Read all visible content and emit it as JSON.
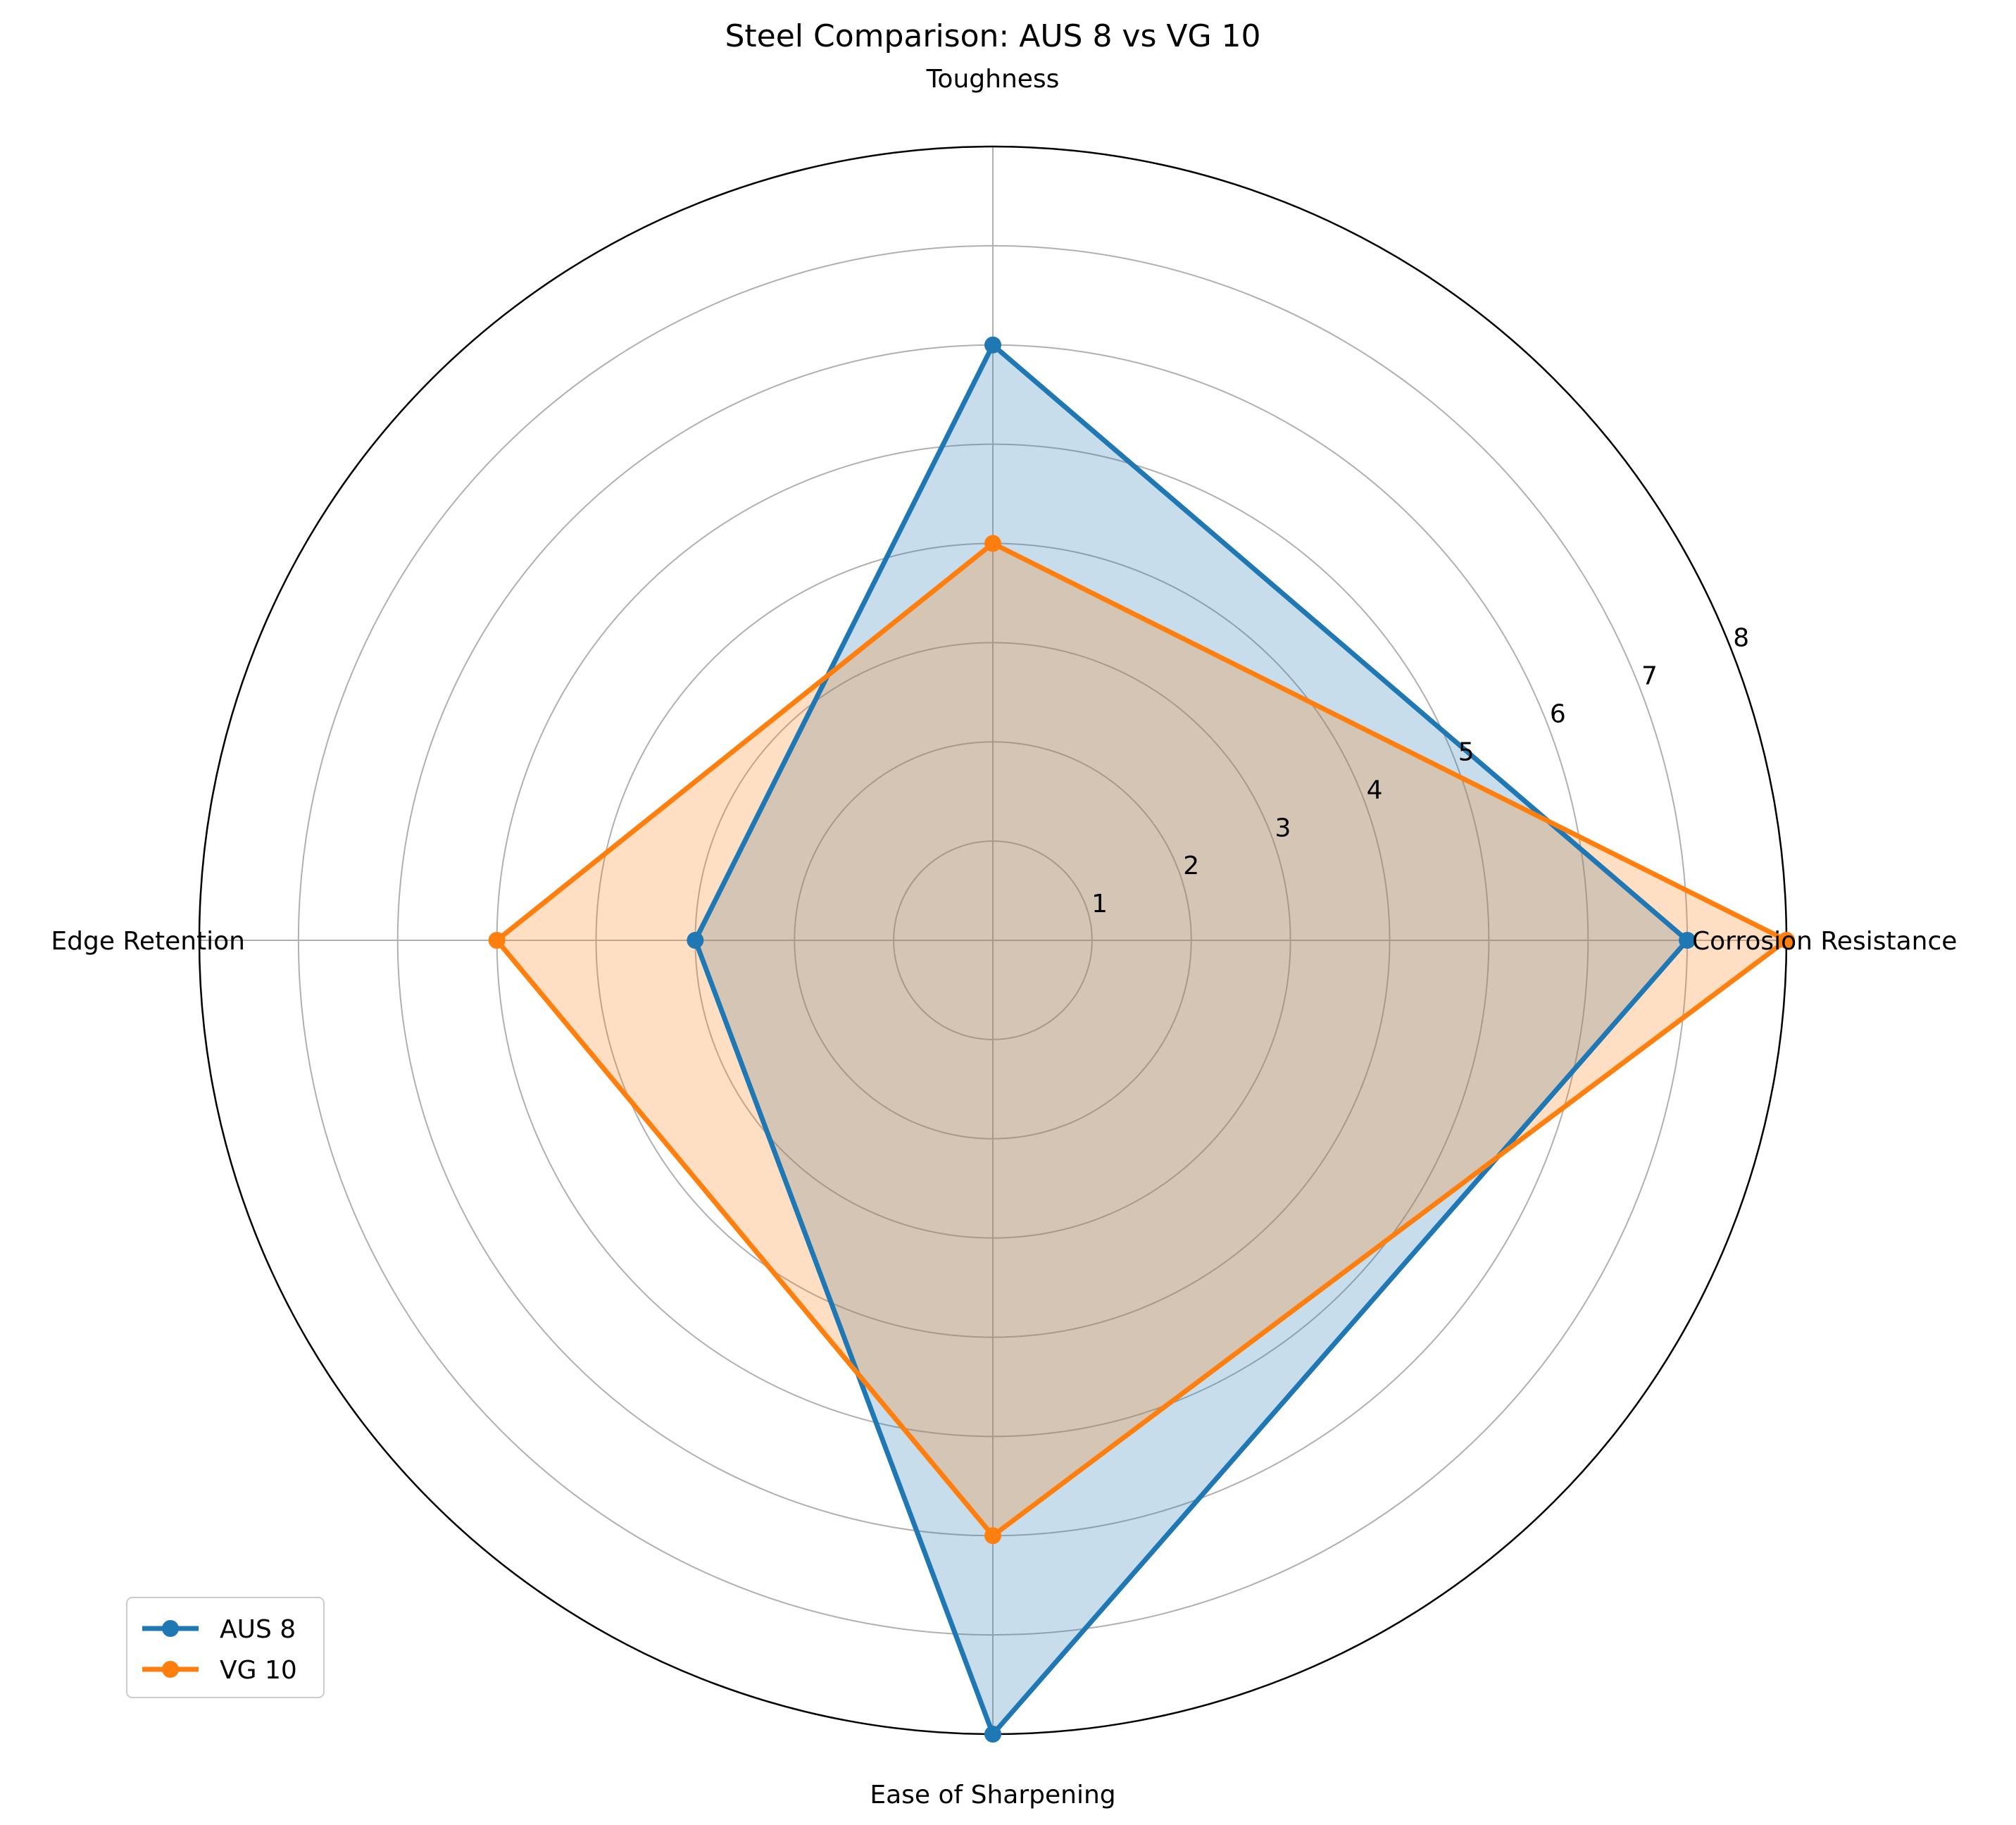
{
  "chart_data": {
    "type": "radar",
    "title": "Steel Comparison: AUS 8 vs VG 10",
    "categories": [
      "Corrosion Resistance",
      "Toughness",
      "Edge Retention",
      "Ease of Sharpening"
    ],
    "series": [
      {
        "name": "AUS 8",
        "values": [
          7,
          6,
          3,
          8
        ],
        "color": "#1f77b4"
      },
      {
        "name": "VG 10",
        "values": [
          8,
          4,
          5,
          6
        ],
        "color": "#ff7f0e"
      }
    ],
    "r_ticks": [
      "1",
      "2",
      "3",
      "4",
      "5",
      "6",
      "7",
      "8"
    ],
    "rlim": [
      0,
      8
    ],
    "grid": true,
    "legend_position": "lower-left"
  }
}
